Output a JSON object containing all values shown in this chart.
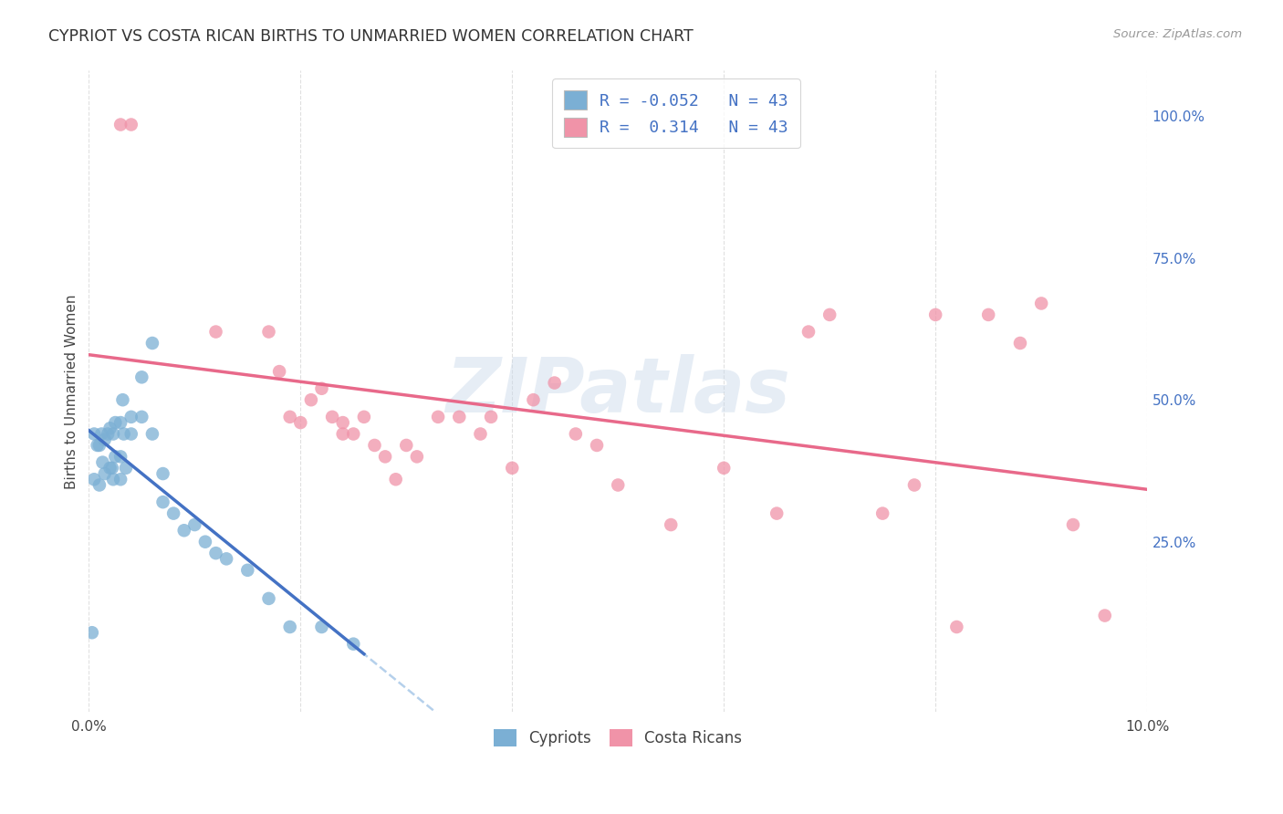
{
  "title": "CYPRIOT VS COSTA RICAN BIRTHS TO UNMARRIED WOMEN CORRELATION CHART",
  "source": "Source: ZipAtlas.com",
  "ylabel": "Births to Unmarried Women",
  "xmin": 0.0,
  "xmax": 0.1,
  "ymin": -0.05,
  "ymax": 1.08,
  "cypriot_color": "#7bafd4",
  "costa_rican_color": "#f093a8",
  "trend_cypriot_solid_color": "#4472c4",
  "trend_costa_rican_color": "#e8698a",
  "trend_cypriot_dashed_color": "#a8c8e8",
  "cypriot_x": [
    0.0003,
    0.0005,
    0.0005,
    0.0008,
    0.001,
    0.001,
    0.0012,
    0.0013,
    0.0015,
    0.0015,
    0.0018,
    0.002,
    0.002,
    0.0022,
    0.0023,
    0.0023,
    0.0025,
    0.0025,
    0.003,
    0.003,
    0.003,
    0.0032,
    0.0033,
    0.0035,
    0.004,
    0.004,
    0.005,
    0.005,
    0.006,
    0.006,
    0.007,
    0.007,
    0.008,
    0.009,
    0.01,
    0.011,
    0.012,
    0.013,
    0.015,
    0.017,
    0.019,
    0.022,
    0.025
  ],
  "cypriot_y": [
    0.09,
    0.44,
    0.36,
    0.42,
    0.42,
    0.35,
    0.44,
    0.39,
    0.43,
    0.37,
    0.44,
    0.45,
    0.38,
    0.38,
    0.44,
    0.36,
    0.46,
    0.4,
    0.46,
    0.4,
    0.36,
    0.5,
    0.44,
    0.38,
    0.47,
    0.44,
    0.47,
    0.54,
    0.6,
    0.44,
    0.37,
    0.32,
    0.3,
    0.27,
    0.28,
    0.25,
    0.23,
    0.22,
    0.2,
    0.15,
    0.1,
    0.1,
    0.07
  ],
  "costa_rican_x": [
    0.003,
    0.004,
    0.012,
    0.017,
    0.018,
    0.019,
    0.02,
    0.021,
    0.022,
    0.023,
    0.024,
    0.024,
    0.025,
    0.026,
    0.027,
    0.028,
    0.029,
    0.03,
    0.031,
    0.033,
    0.035,
    0.037,
    0.038,
    0.04,
    0.042,
    0.044,
    0.046,
    0.048,
    0.05,
    0.055,
    0.06,
    0.065,
    0.068,
    0.07,
    0.075,
    0.078,
    0.08,
    0.082,
    0.085,
    0.088,
    0.09,
    0.093,
    0.096
  ],
  "costa_rican_y": [
    0.985,
    0.985,
    0.62,
    0.62,
    0.55,
    0.47,
    0.46,
    0.5,
    0.52,
    0.47,
    0.44,
    0.46,
    0.44,
    0.47,
    0.42,
    0.4,
    0.36,
    0.42,
    0.4,
    0.47,
    0.47,
    0.44,
    0.47,
    0.38,
    0.5,
    0.53,
    0.44,
    0.42,
    0.35,
    0.28,
    0.38,
    0.3,
    0.62,
    0.65,
    0.3,
    0.35,
    0.65,
    0.1,
    0.65,
    0.6,
    0.67,
    0.28,
    0.12
  ],
  "watermark_text": "ZIPatlas",
  "bg_color": "#ffffff",
  "grid_color": "#cccccc",
  "legend_r_cypriot": "R = -0.052",
  "legend_n_cypriot": "N = 43",
  "legend_r_costarican": "R =  0.314",
  "legend_n_costarican": "N = 43",
  "cypriot_label": "Cypriots",
  "costarican_label": "Costa Ricans"
}
